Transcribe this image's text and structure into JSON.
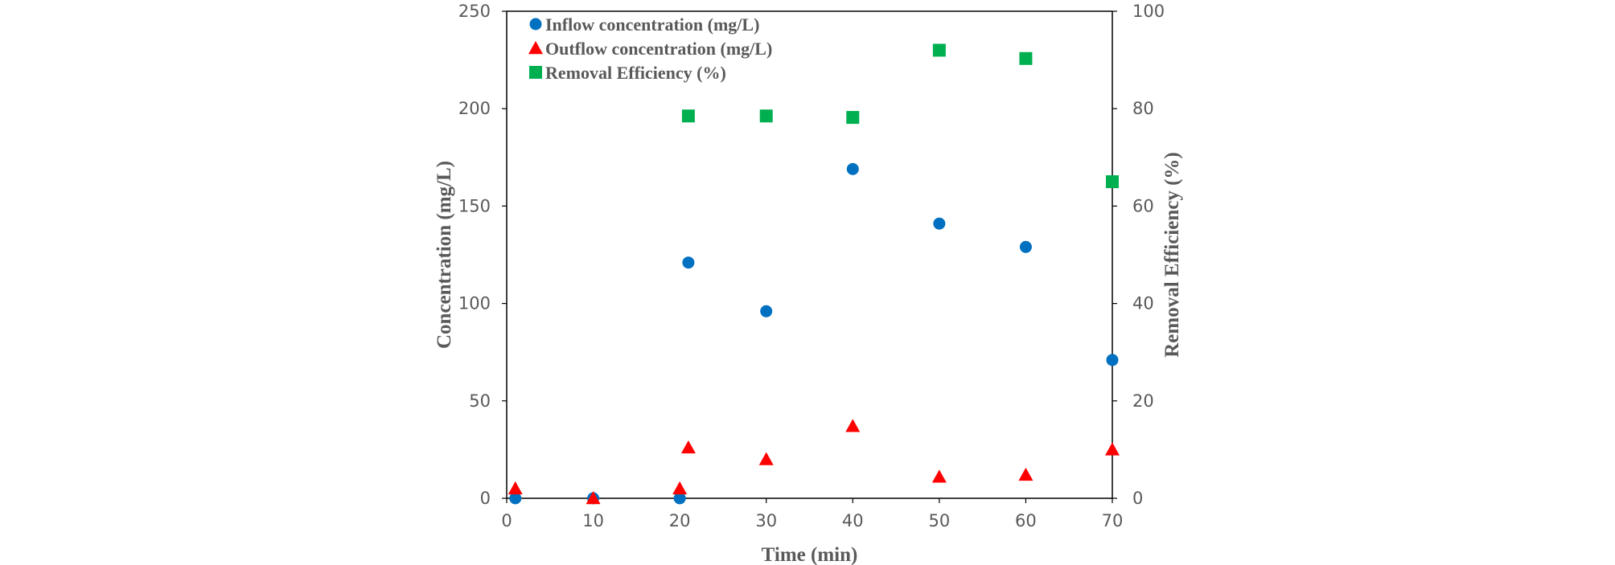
{
  "chart_data": {
    "type": "scatter",
    "xlabel": "Time (min)",
    "ylabel": "Concentration (mg/L)",
    "y2label": "Removal Efficiency (%)",
    "xlim": [
      0,
      70
    ],
    "ylim": [
      0,
      250
    ],
    "y2lim": [
      0,
      100
    ],
    "xticks": [
      "0",
      "10",
      "20",
      "30",
      "40",
      "50",
      "60",
      "70"
    ],
    "yticks": [
      "0",
      "50",
      "100",
      "150",
      "200",
      "250"
    ],
    "y2ticks": [
      "0",
      "20",
      "40",
      "60",
      "80",
      "100"
    ],
    "grid": false,
    "legend_position": "top-left",
    "series": [
      {
        "name": "Inflow concentration (mg/L)",
        "axis": "left",
        "marker": "circle",
        "color": "#0070C0",
        "points": [
          [
            1,
            0
          ],
          [
            10,
            0
          ],
          [
            20,
            0
          ],
          [
            21,
            121
          ],
          [
            30,
            96
          ],
          [
            40,
            169
          ],
          [
            50,
            141
          ],
          [
            60,
            129
          ],
          [
            70,
            71
          ]
        ]
      },
      {
        "name": "Outflow concentration (mg/L)",
        "axis": "left",
        "marker": "triangle",
        "color": "#FF0000",
        "points": [
          [
            1,
            5
          ],
          [
            10,
            0
          ],
          [
            20,
            5
          ],
          [
            21,
            26
          ],
          [
            30,
            20
          ],
          [
            40,
            37
          ],
          [
            50,
            11
          ],
          [
            60,
            12
          ],
          [
            70,
            25
          ]
        ]
      },
      {
        "name": "Removal Efficiency (%)",
        "axis": "right",
        "marker": "square",
        "color": "#00B050",
        "points": [
          [
            21,
            78.5
          ],
          [
            30,
            78.5
          ],
          [
            40,
            78.2
          ],
          [
            50,
            92
          ],
          [
            60,
            90.3
          ],
          [
            70,
            65
          ]
        ]
      }
    ]
  }
}
